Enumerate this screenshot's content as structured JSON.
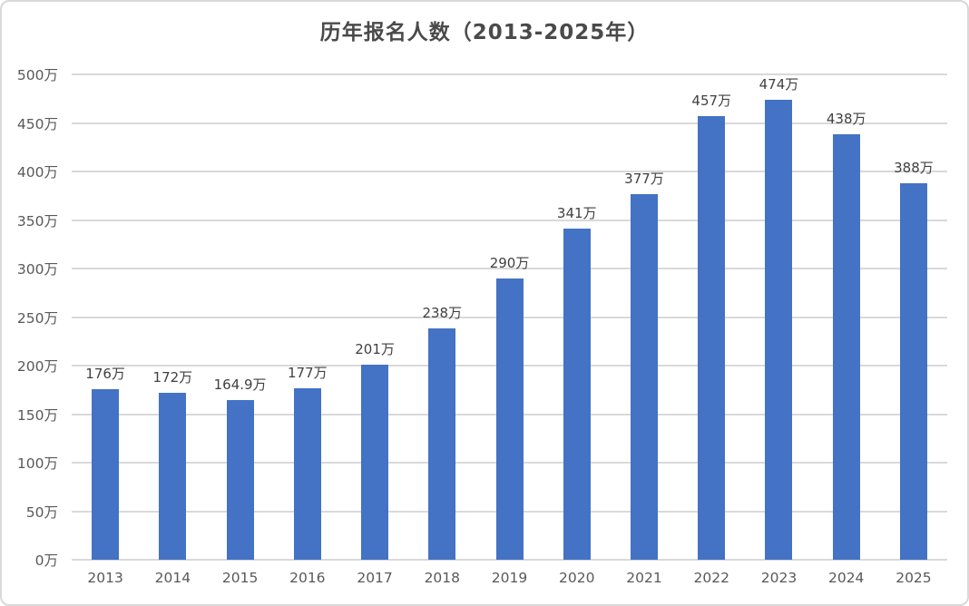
{
  "chart_data": {
    "type": "bar",
    "title": "历年报名人数（2013-2025年）",
    "categories": [
      "2013",
      "2014",
      "2015",
      "2016",
      "2017",
      "2018",
      "2019",
      "2020",
      "2021",
      "2022",
      "2023",
      "2024",
      "2025"
    ],
    "values": [
      176,
      172,
      164.9,
      177,
      201,
      238,
      290,
      341,
      377,
      457,
      474,
      438,
      388
    ],
    "bar_labels": [
      "176万",
      "172万",
      "164.9万",
      "177万",
      "201万",
      "238万",
      "290万",
      "341万",
      "377万",
      "457万",
      "474万",
      "438万",
      "388万"
    ],
    "xlabel": "",
    "ylabel": "",
    "ylim": [
      0,
      500
    ],
    "ytick_step": 50,
    "yticks": [
      "0万",
      "50万",
      "100万",
      "150万",
      "200万",
      "250万",
      "300万",
      "350万",
      "400万",
      "450万",
      "500万"
    ],
    "grid": "horizontal",
    "legend_position": "none",
    "colors": {
      "bar": "#4472C4",
      "gridline": "#D9D9D9",
      "axis_line": "#D9D9D9",
      "tick_label": "#595959",
      "data_label": "#404040",
      "title": "#4A4A4A",
      "chart_border": "#D9D9D9",
      "background": "#FFFFFF"
    }
  }
}
